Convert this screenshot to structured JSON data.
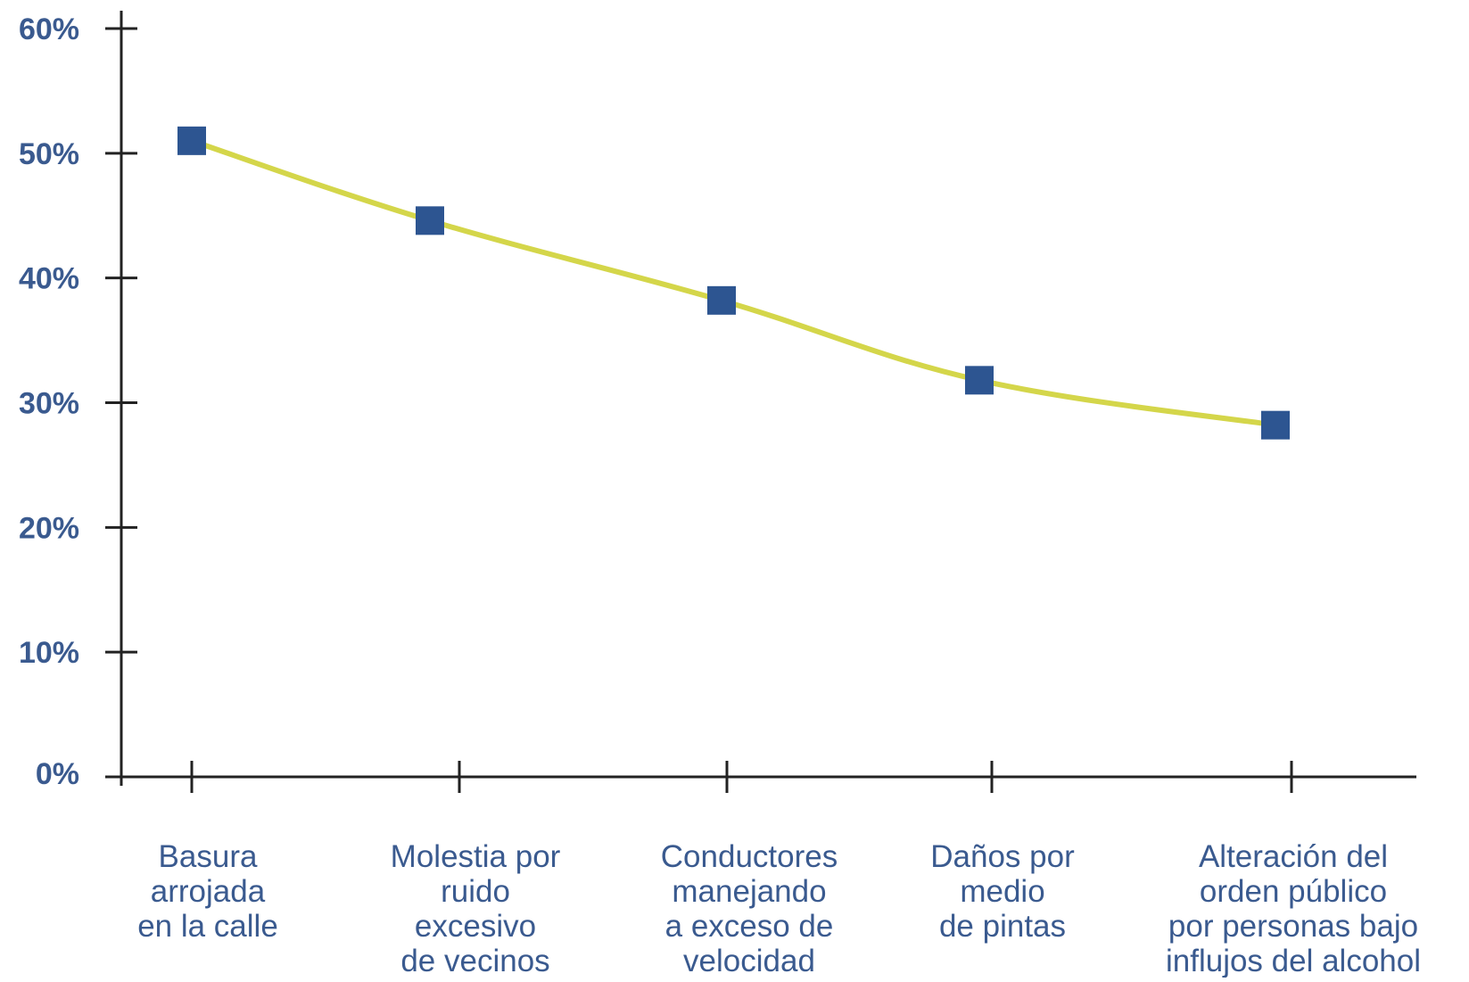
{
  "chart_data": {
    "type": "line",
    "categories": [
      [
        "Basura",
        "arrojada",
        "en la calle"
      ],
      [
        "Molestia por",
        "ruido",
        "excesivo",
        "de vecinos"
      ],
      [
        "Conductores",
        "manejando",
        "a exceso de",
        "velocidad"
      ],
      [
        "Daños por",
        "medio",
        "de pintas"
      ],
      [
        "Alteración del",
        "orden público",
        "por personas bajo",
        "influjos del alcohol"
      ]
    ],
    "series": [
      {
        "values": [
          51,
          44.6,
          38.2,
          31.8,
          28.2
        ]
      }
    ],
    "ylim": [
      0,
      60
    ],
    "yticks": [
      0,
      10,
      20,
      30,
      40,
      50,
      60
    ],
    "ytick_labels": [
      "0%",
      "10%",
      "20%",
      "30%",
      "40%",
      "50%",
      "60%"
    ],
    "grid": false,
    "legend": "none",
    "colors": {
      "line": "#d4d64a",
      "marker": "#2d5591",
      "axis": "#222222",
      "label": "#3a5a8f"
    }
  }
}
